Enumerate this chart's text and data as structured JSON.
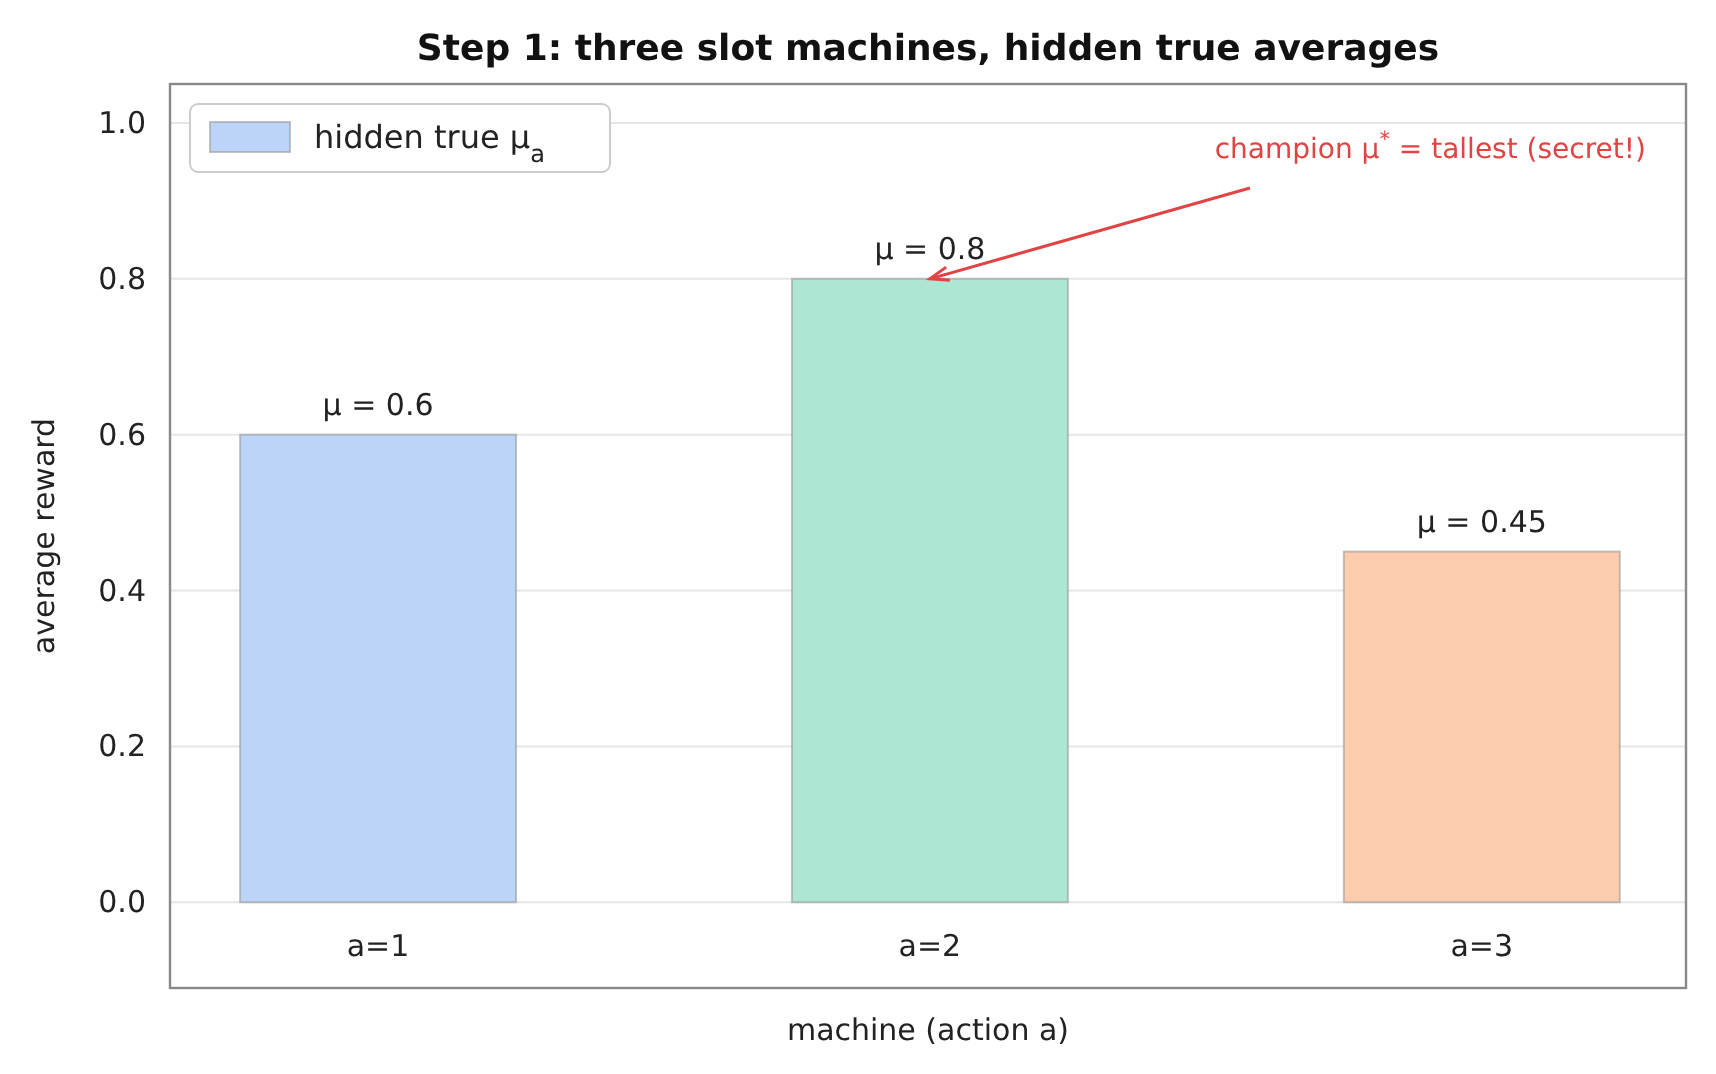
{
  "chart_data": {
    "type": "bar",
    "title": "Step 1: three slot machines, hidden true averages",
    "xlabel": "machine (action a)",
    "ylabel": "average reward",
    "categories": [
      "a=1",
      "a=2",
      "a=3"
    ],
    "series": [
      {
        "name": "hidden true μ$_{a}$",
        "color": "#bcd4f8",
        "colors": [
          "#bcd4f8",
          "#aee6d4",
          "#fbcdae"
        ],
        "values": [
          0.6,
          0.8,
          0.45
        ],
        "value_labels": [
          "μ = 0.6",
          "μ = 0.8",
          "μ = 0.45"
        ]
      }
    ],
    "ylim": [
      -0.11,
      1.05
    ],
    "yticks": [
      {
        "value": 0,
        "label": "0.0"
      },
      0.2,
      0.4,
      0.6,
      0.8,
      {
        "value": 1,
        "label": "1.0"
      }
    ],
    "grid": "y",
    "legend": "top left",
    "annotations": [
      {
        "text": "champion μ$^{*}$ = tallest (secret!)",
        "x": "a=2",
        "y": 0.8
      }
    ]
  }
}
